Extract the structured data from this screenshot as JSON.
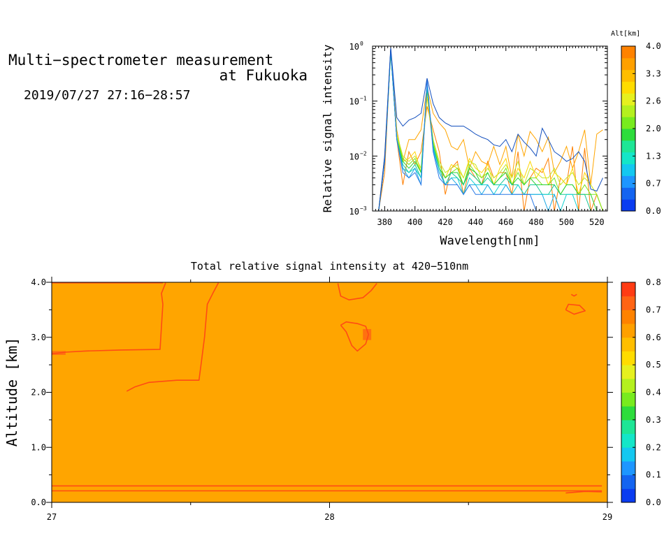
{
  "header": {
    "title_line1": "Multi−spectrometer measurement",
    "title_line2": "at Fukuoka",
    "timestamp": "2019/07/27 27:16−28:57"
  },
  "chart_data": [
    {
      "type": "line",
      "title": "",
      "xlabel": "Wavelength[nm]",
      "ylabel": "Relative signal intensity",
      "xlim": [
        372,
        527
      ],
      "ylim": [
        0.001,
        1
      ],
      "yscale": "log",
      "x_ticks": [
        "380",
        "400",
        "420",
        "440",
        "460",
        "480",
        "500",
        "520"
      ],
      "y_ticks": [
        {
          "base": "10",
          "exp": "−3"
        },
        {
          "base": "10",
          "exp": "−2"
        },
        {
          "base": "10",
          "exp": "−1"
        },
        {
          "base": "10",
          "exp": "0"
        }
      ],
      "x": [
        376,
        380,
        384,
        388,
        392,
        396,
        400,
        404,
        408,
        412,
        416,
        420,
        424,
        428,
        432,
        436,
        440,
        444,
        448,
        452,
        456,
        460,
        464,
        468,
        472,
        476,
        480,
        484,
        488,
        492,
        496,
        500,
        504,
        508,
        512,
        516,
        520,
        524
      ],
      "series": [
        {
          "alt": 4.0,
          "color": "#ff7f00",
          "values": [
            0.001,
            0.005,
            0.9,
            0.02,
            0.003,
            0.012,
            0.007,
            0.012,
            0.08,
            0.03,
            0.012,
            0.002,
            0.006,
            0.008,
            0.002,
            0.006,
            0.004,
            0.003,
            0.008,
            0.004,
            0.005,
            0.005,
            0.002,
            0.012,
            0.001,
            0.004,
            0.006,
            0.005,
            0.009,
            0.001,
            0.004,
            0.003,
            0.015,
            0.001,
            0.014,
            0.001,
            0.002,
            0.001
          ]
        },
        {
          "alt": 3.7,
          "color": "#ffa500",
          "values": [
            0.001,
            0.01,
            0.85,
            0.03,
            0.008,
            0.02,
            0.02,
            0.03,
            0.18,
            0.06,
            0.04,
            0.03,
            0.015,
            0.013,
            0.02,
            0.006,
            0.012,
            0.008,
            0.007,
            0.015,
            0.007,
            0.015,
            0.004,
            0.025,
            0.01,
            0.028,
            0.02,
            0.012,
            0.022,
            0.005,
            0.008,
            0.015,
            0.006,
            0.012,
            0.03,
            0.003,
            0.025,
            0.03
          ]
        },
        {
          "alt": 3.3,
          "color": "#ffd700",
          "values": [
            0.001,
            0.008,
            0.82,
            0.02,
            0.008,
            0.009,
            0.012,
            0.005,
            0.12,
            0.015,
            0.007,
            0.004,
            0.007,
            0.006,
            0.004,
            0.009,
            0.006,
            0.005,
            0.007,
            0.003,
            0.006,
            0.009,
            0.003,
            0.006,
            0.004,
            0.008,
            0.004,
            0.006,
            0.003,
            0.005,
            0.004,
            0.003,
            0.006,
            0.002,
            0.005,
            0.003,
            0.002,
            0.001
          ]
        },
        {
          "alt": 2.9,
          "color": "#c8e628",
          "values": [
            0.001,
            0.008,
            0.8,
            0.025,
            0.01,
            0.008,
            0.01,
            0.006,
            0.15,
            0.02,
            0.008,
            0.005,
            0.006,
            0.007,
            0.004,
            0.008,
            0.007,
            0.004,
            0.006,
            0.004,
            0.005,
            0.007,
            0.004,
            0.008,
            0.003,
            0.006,
            0.005,
            0.004,
            0.004,
            0.006,
            0.003,
            0.004,
            0.005,
            0.003,
            0.004,
            0.003,
            0.002,
            0.001
          ]
        },
        {
          "alt": 2.6,
          "color": "#7de61e",
          "values": [
            0.001,
            0.008,
            0.78,
            0.022,
            0.009,
            0.007,
            0.009,
            0.005,
            0.16,
            0.018,
            0.007,
            0.004,
            0.005,
            0.006,
            0.003,
            0.007,
            0.005,
            0.004,
            0.005,
            0.003,
            0.004,
            0.006,
            0.003,
            0.005,
            0.003,
            0.004,
            0.004,
            0.003,
            0.003,
            0.004,
            0.002,
            0.003,
            0.003,
            0.002,
            0.003,
            0.002,
            0.002,
            0.001
          ]
        },
        {
          "alt": 2.2,
          "color": "#28d232",
          "values": [
            0.001,
            0.008,
            0.8,
            0.02,
            0.008,
            0.006,
            0.008,
            0.005,
            0.17,
            0.016,
            0.006,
            0.004,
            0.005,
            0.005,
            0.003,
            0.006,
            0.005,
            0.003,
            0.005,
            0.003,
            0.004,
            0.005,
            0.003,
            0.004,
            0.003,
            0.004,
            0.003,
            0.003,
            0.003,
            0.003,
            0.002,
            0.003,
            0.003,
            0.002,
            0.002,
            0.002,
            0.001,
            0.001
          ]
        },
        {
          "alt": 1.8,
          "color": "#19c896",
          "values": [
            0.001,
            0.008,
            0.82,
            0.02,
            0.007,
            0.005,
            0.007,
            0.004,
            0.18,
            0.015,
            0.006,
            0.003,
            0.005,
            0.004,
            0.003,
            0.005,
            0.004,
            0.003,
            0.004,
            0.003,
            0.003,
            0.004,
            0.003,
            0.003,
            0.002,
            0.003,
            0.003,
            0.002,
            0.002,
            0.003,
            0.002,
            0.002,
            0.002,
            0.002,
            0.002,
            0.001,
            0.001,
            0.001
          ]
        },
        {
          "alt": 1.3,
          "color": "#14d2d2",
          "values": [
            0.001,
            0.008,
            0.85,
            0.02,
            0.006,
            0.005,
            0.006,
            0.004,
            0.2,
            0.014,
            0.005,
            0.003,
            0.004,
            0.004,
            0.002,
            0.004,
            0.003,
            0.003,
            0.003,
            0.002,
            0.003,
            0.003,
            0.002,
            0.003,
            0.002,
            0.002,
            0.002,
            0.002,
            0.002,
            0.002,
            0.001,
            0.002,
            0.002,
            0.001,
            0.001,
            0.001,
            0.001,
            0.001
          ]
        },
        {
          "alt": 0.9,
          "color": "#1eaae6",
          "values": [
            0.001,
            0.008,
            0.88,
            0.02,
            0.006,
            0.004,
            0.006,
            0.003,
            0.22,
            0.013,
            0.005,
            0.003,
            0.004,
            0.003,
            0.002,
            0.003,
            0.003,
            0.002,
            0.003,
            0.002,
            0.002,
            0.003,
            0.002,
            0.002,
            0.002,
            0.002,
            0.002,
            0.002,
            0.001,
            0.002,
            0.001,
            0.001,
            0.001,
            0.001,
            0.001,
            0.001,
            0.001,
            0.001
          ]
        },
        {
          "alt": 0.4,
          "color": "#2878e6",
          "values": [
            0.001,
            0.008,
            0.9,
            0.02,
            0.005,
            0.004,
            0.005,
            0.003,
            0.24,
            0.012,
            0.004,
            0.003,
            0.003,
            0.003,
            0.002,
            0.003,
            0.002,
            0.002,
            0.002,
            0.002,
            0.002,
            0.002,
            0.002,
            0.002,
            0.002,
            0.002,
            0.001,
            0.001,
            0.001,
            0.001,
            0.001,
            0.001,
            0.001,
            0.001,
            0.001,
            0.001,
            0.001,
            0.001
          ]
        },
        {
          "alt": 0.0,
          "color": "#1450be",
          "values": [
            0.001,
            0.01,
            0.95,
            0.05,
            0.035,
            0.045,
            0.05,
            0.06,
            0.26,
            0.09,
            0.05,
            0.04,
            0.035,
            0.035,
            0.035,
            0.03,
            0.025,
            0.022,
            0.02,
            0.016,
            0.015,
            0.02,
            0.012,
            0.025,
            0.018,
            0.014,
            0.01,
            0.032,
            0.02,
            0.012,
            0.01,
            0.008,
            0.009,
            0.012,
            0.008,
            0.0025,
            0.0023,
            0.004
          ]
        }
      ],
      "colorbar": {
        "label": "Alt[km]",
        "ticks": [
          "0.0",
          "0.7",
          "1.3",
          "2.0",
          "2.6",
          "3.3",
          "4.0"
        ],
        "colors": [
          "#0a3cf0",
          "#1464f0",
          "#1e96ff",
          "#14c8f0",
          "#14e6c8",
          "#1ee696",
          "#2ddc3c",
          "#78eb1e",
          "#b4f01e",
          "#e6f01e",
          "#ffdc00",
          "#ffbe00",
          "#ffa000",
          "#ff8200"
        ]
      }
    },
    {
      "type": "heatmap",
      "title": "Total relative signal intensity at 420−510nm",
      "xlabel": "",
      "ylabel": "Altitude [km]",
      "xlim": [
        27,
        29
      ],
      "ylim": [
        0,
        4
      ],
      "x_ticks": [
        "27",
        "28",
        "29"
      ],
      "y_ticks": [
        "0.0",
        "1.0",
        "2.0",
        "3.0",
        "4.0"
      ],
      "background_value": 0.65,
      "background_color": "#ffa500",
      "contour_color": "#ff4b14",
      "contours": [
        [
          [
            27.0,
            3.99
          ],
          [
            27.4,
            3.99
          ]
        ],
        [
          [
            27.0,
            2.7
          ],
          [
            27.05,
            2.73
          ],
          [
            27.12,
            2.75
          ],
          [
            27.25,
            2.77
          ],
          [
            27.39,
            2.78
          ],
          [
            27.395,
            3.2
          ],
          [
            27.4,
            3.6
          ],
          [
            27.395,
            3.8
          ],
          [
            27.41,
            3.99
          ]
        ],
        [
          [
            27.27,
            2.02
          ],
          [
            27.3,
            2.1
          ],
          [
            27.35,
            2.18
          ],
          [
            27.45,
            2.22
          ],
          [
            27.53,
            2.22
          ],
          [
            27.54,
            2.6
          ],
          [
            27.55,
            3.0
          ],
          [
            27.56,
            3.6
          ],
          [
            27.58,
            3.8
          ],
          [
            27.6,
            3.99
          ]
        ],
        [
          [
            28.03,
            3.98
          ],
          [
            28.04,
            3.75
          ],
          [
            28.07,
            3.68
          ],
          [
            28.12,
            3.72
          ],
          [
            28.15,
            3.85
          ],
          [
            28.17,
            3.98
          ]
        ],
        [
          [
            28.04,
            3.22
          ],
          [
            28.06,
            3.1
          ],
          [
            28.08,
            2.85
          ],
          [
            28.1,
            2.75
          ],
          [
            28.13,
            2.88
          ],
          [
            28.14,
            3.05
          ],
          [
            28.13,
            3.2
          ],
          [
            28.1,
            3.25
          ],
          [
            28.06,
            3.28
          ],
          [
            28.04,
            3.22
          ]
        ],
        [
          [
            28.85,
            3.5
          ],
          [
            28.88,
            3.42
          ],
          [
            28.92,
            3.48
          ],
          [
            28.9,
            3.58
          ],
          [
            28.86,
            3.6
          ],
          [
            28.85,
            3.5
          ]
        ],
        [
          [
            28.87,
            3.78
          ],
          [
            28.88,
            3.75
          ],
          [
            28.89,
            3.78
          ]
        ],
        [
          [
            27.0,
            0.3
          ],
          [
            28.98,
            0.3
          ]
        ],
        [
          [
            27.0,
            0.21
          ],
          [
            28.98,
            0.21
          ]
        ],
        [
          [
            28.85,
            0.17
          ],
          [
            28.92,
            0.2
          ],
          [
            28.98,
            0.19
          ]
        ]
      ],
      "patches": [
        {
          "x": [
            27.0,
            27.05
          ],
          "y": [
            2.68,
            2.75
          ]
        },
        {
          "x": [
            28.12,
            28.15
          ],
          "y": [
            2.95,
            3.15
          ]
        }
      ],
      "colorbar": {
        "ticks": [
          "0.0",
          "0.1",
          "0.2",
          "0.3",
          "0.4",
          "0.5",
          "0.6",
          "0.7",
          "0.8"
        ],
        "colors": [
          "#0a3cf0",
          "#1464f0",
          "#1e96ff",
          "#14c8f0",
          "#14e6c8",
          "#1ee696",
          "#2ddc3c",
          "#78eb1e",
          "#b4f01e",
          "#e6f01e",
          "#ffdc00",
          "#ffbe00",
          "#ffa000",
          "#ff8200",
          "#ff6414",
          "#ff3c14"
        ]
      }
    }
  ]
}
